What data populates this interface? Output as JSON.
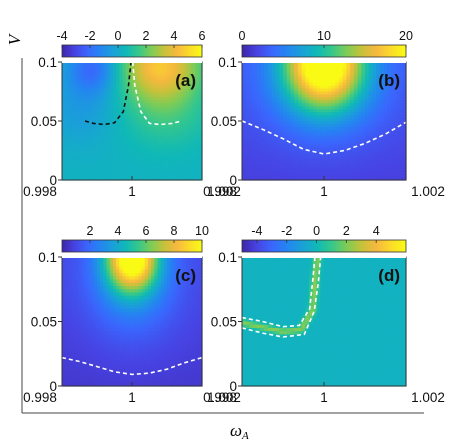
{
  "figure": {
    "ylabel": "V",
    "xlabel": "ω",
    "xlabel_sub": "A"
  },
  "colormap": [
    "#3e26a8",
    "#4743e3",
    "#3a66fd",
    "#2485f1",
    "#1aa0d8",
    "#0fb8b8",
    "#35c78c",
    "#7ccc57",
    "#c4c23a",
    "#f6b83f",
    "#fbdb2a",
    "#f9fb15"
  ],
  "chart_data": [
    {
      "id": "a",
      "label": "(a)",
      "type": "heatmap",
      "xlim": [
        0.998,
        1.002
      ],
      "ylim": [
        0,
        0.1
      ],
      "xticks": [
        "0.998",
        "1",
        "1.002"
      ],
      "yticks": [
        "0",
        "0.05",
        "0.1"
      ],
      "colorbar": {
        "min": -4,
        "max": 6,
        "ticks": [
          "-4",
          "-2",
          "0",
          "2",
          "4",
          "6"
        ]
      },
      "field": "antisym_split",
      "contours": [
        {
          "style": "black-dashed",
          "x": [
            0.99866,
            0.9989,
            0.9992,
            0.9995,
            0.99975,
            0.9999,
            0.99997
          ],
          "y": [
            0.05,
            0.048,
            0.047,
            0.0485,
            0.058,
            0.08,
            0.1
          ]
        },
        {
          "style": "white-dashed",
          "x": [
            1.00002,
            1.00008,
            1.00025,
            1.0005,
            1.0008,
            1.00115,
            1.00142
          ],
          "y": [
            0.1,
            0.08,
            0.058,
            0.048,
            0.047,
            0.048,
            0.05
          ]
        }
      ]
    },
    {
      "id": "b",
      "label": "(b)",
      "type": "heatmap",
      "xlim": [
        0.998,
        1.002
      ],
      "ylim": [
        0,
        0.1
      ],
      "xticks": [
        "0.998",
        "1",
        "1.002"
      ],
      "yticks": [
        "0",
        "0.05",
        "0.1"
      ],
      "colorbar": {
        "min": 0,
        "max": 20,
        "ticks": [
          "0",
          "10",
          "20"
        ]
      },
      "field": "peak_top",
      "contours": [
        {
          "style": "white-dashed",
          "x": [
            0.998,
            0.9985,
            0.999,
            0.9995,
            1.0,
            1.0005,
            1.001,
            1.0015,
            1.002
          ],
          "y": [
            0.05,
            0.043,
            0.035,
            0.026,
            0.022,
            0.025,
            0.031,
            0.039,
            0.049
          ]
        }
      ]
    },
    {
      "id": "c",
      "label": "(c)",
      "type": "heatmap",
      "xlim": [
        0.998,
        1.002
      ],
      "ylim": [
        0,
        0.1
      ],
      "xticks": [
        "0.998",
        "1",
        "1.002"
      ],
      "yticks": [
        "0",
        "0.05",
        "0.1"
      ],
      "colorbar": {
        "min": 0,
        "max": 10,
        "ticks": [
          "2",
          "4",
          "6",
          "8",
          "10"
        ]
      },
      "field": "peak_top_narrow",
      "contours": [
        {
          "style": "white-dashed",
          "x": [
            0.998,
            0.9985,
            0.999,
            0.9995,
            1.0,
            1.0005,
            1.001,
            1.0015,
            1.002
          ],
          "y": [
            0.022,
            0.019,
            0.015,
            0.011,
            0.009,
            0.01,
            0.013,
            0.018,
            0.022
          ]
        }
      ]
    },
    {
      "id": "d",
      "label": "(d)",
      "type": "heatmap",
      "xlim": [
        0.998,
        1.002
      ],
      "ylim": [
        0,
        0.1
      ],
      "xticks": [
        "0.998",
        "1",
        "1.002"
      ],
      "yticks": [
        "0",
        "0.05",
        "0.1"
      ],
      "colorbar": {
        "min": -5,
        "max": 6,
        "ticks": [
          "-4",
          "-2",
          "0",
          "2",
          "4"
        ]
      },
      "field": "band_curve",
      "contours": [
        {
          "style": "white-dashed",
          "x": [
            0.998,
            0.9985,
            0.999,
            0.9994,
            0.99965,
            0.99972,
            0.99978
          ],
          "y": [
            0.053,
            0.05,
            0.046,
            0.047,
            0.06,
            0.08,
            0.1
          ]
        },
        {
          "style": "white-dashed",
          "x": [
            0.998,
            0.9985,
            0.999,
            0.99952,
            0.99976,
            0.99986,
            0.99992
          ],
          "y": [
            0.045,
            0.041,
            0.038,
            0.04,
            0.058,
            0.08,
            0.1
          ]
        }
      ]
    }
  ]
}
